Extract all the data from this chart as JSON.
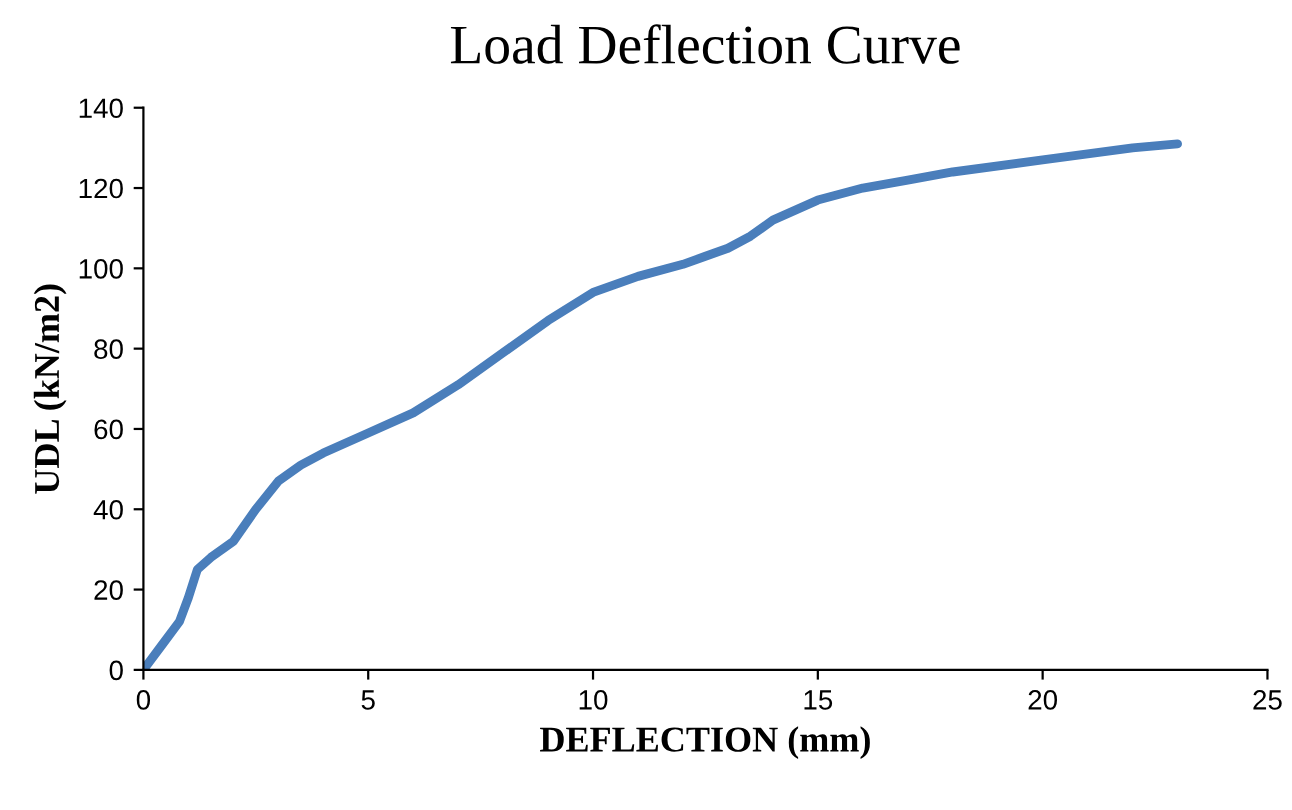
{
  "chart_data": {
    "type": "line",
    "title": "Load Deflection Curve",
    "xlabel": "DEFLECTION (mm)",
    "ylabel": "UDL (kN/m2)",
    "series": [
      {
        "color": "#4a7ebb",
        "x": [
          0,
          0.4,
          0.8,
          1.0,
          1.2,
          1.5,
          2.0,
          2.5,
          3.0,
          3.5,
          4.0,
          5.0,
          6.0,
          7.0,
          8.0,
          9.0,
          10.0,
          11.0,
          12.0,
          12.5,
          13.0,
          13.5,
          14.0,
          15.0,
          16.0,
          17.0,
          18.0,
          20.0,
          22.0,
          23.0
        ],
        "values": [
          0,
          6,
          12,
          18,
          25,
          28,
          32,
          40,
          47,
          51,
          54,
          59,
          64,
          71,
          79,
          87,
          94,
          98,
          101,
          103,
          105,
          108,
          112,
          117,
          120,
          122,
          124,
          127,
          130,
          131
        ]
      }
    ],
    "xlim": [
      0,
      25
    ],
    "ylim": [
      0,
      140
    ],
    "xticks": [
      0,
      5,
      10,
      15,
      20,
      25
    ],
    "yticks": [
      0,
      20,
      40,
      60,
      80,
      100,
      120,
      140
    ],
    "grid": false,
    "legend": false,
    "marker": "none",
    "line_style": "solid"
  }
}
